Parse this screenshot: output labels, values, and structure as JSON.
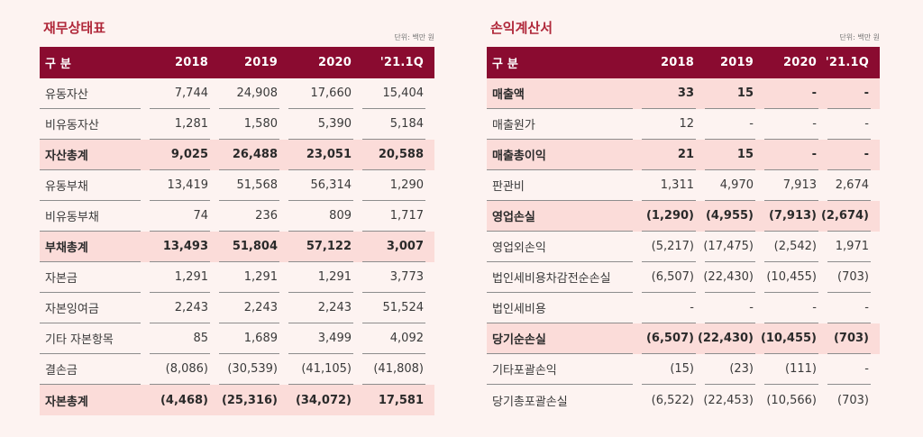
{
  "balance_sheet": {
    "title": "재무상태표",
    "unit": "단위: 백만 원",
    "columns": [
      "구 분",
      "2018",
      "2019",
      "2020",
      "'21.1Q"
    ],
    "rows": [
      {
        "label": "유동자산",
        "values": [
          "7,744",
          "24,908",
          "17,660",
          "15,404"
        ],
        "highlight": false
      },
      {
        "label": "비유동자산",
        "values": [
          "1,281",
          "1,580",
          "5,390",
          "5,184"
        ],
        "highlight": false
      },
      {
        "label": "자산총계",
        "values": [
          "9,025",
          "26,488",
          "23,051",
          "20,588"
        ],
        "highlight": true
      },
      {
        "label": "유동부채",
        "values": [
          "13,419",
          "51,568",
          "56,314",
          "1,290"
        ],
        "highlight": false
      },
      {
        "label": "비유동부채",
        "values": [
          "74",
          "236",
          "809",
          "1,717"
        ],
        "highlight": false
      },
      {
        "label": "부채총계",
        "values": [
          "13,493",
          "51,804",
          "57,122",
          "3,007"
        ],
        "highlight": true
      },
      {
        "label": "자본금",
        "values": [
          "1,291",
          "1,291",
          "1,291",
          "3,773"
        ],
        "highlight": false
      },
      {
        "label": "자본잉여금",
        "values": [
          "2,243",
          "2,243",
          "2,243",
          "51,524"
        ],
        "highlight": false
      },
      {
        "label": "기타 자본항목",
        "values": [
          "85",
          "1,689",
          "3,499",
          "4,092"
        ],
        "highlight": false
      },
      {
        "label": "결손금",
        "values": [
          "(8,086)",
          "(30,539)",
          "(41,105)",
          "(41,808)"
        ],
        "highlight": false
      },
      {
        "label": "자본총계",
        "values": [
          "(4,468)",
          "(25,316)",
          "(34,072)",
          "17,581"
        ],
        "highlight": true
      }
    ]
  },
  "income_statement": {
    "title": "손익계산서",
    "unit": "단위: 백만 원",
    "columns": [
      "구 분",
      "2018",
      "2019",
      "2020",
      "'21.1Q"
    ],
    "rows": [
      {
        "label": "매출액",
        "values": [
          "33",
          "15",
          "-",
          "-"
        ],
        "highlight": true
      },
      {
        "label": "매출원가",
        "values": [
          "12",
          "-",
          "-",
          "-"
        ],
        "highlight": false
      },
      {
        "label": "매출총이익",
        "values": [
          "21",
          "15",
          "-",
          "-"
        ],
        "highlight": true
      },
      {
        "label": "판관비",
        "values": [
          "1,311",
          "4,970",
          "7,913",
          "2,674"
        ],
        "highlight": false
      },
      {
        "label": "영업손실",
        "values": [
          "(1,290)",
          "(4,955)",
          "(7,913)",
          "(2,674)"
        ],
        "highlight": true
      },
      {
        "label": "영업외손익",
        "values": [
          "(5,217)",
          "(17,475)",
          "(2,542)",
          "1,971"
        ],
        "highlight": false
      },
      {
        "label": "법인세비용차감전순손실",
        "values": [
          "(6,507)",
          "(22,430)",
          "(10,455)",
          "(703)"
        ],
        "highlight": false
      },
      {
        "label": "법인세비용",
        "values": [
          "-",
          "-",
          "-",
          "-"
        ],
        "highlight": false
      },
      {
        "label": "당기순손실",
        "values": [
          "(6,507)",
          "(22,430)",
          "(10,455)",
          "(703)"
        ],
        "highlight": true
      },
      {
        "label": "기타포괄손익",
        "values": [
          "(15)",
          "(23)",
          "(111)",
          "-"
        ],
        "highlight": false
      },
      {
        "label": "당기총포괄손실",
        "values": [
          "(6,522)",
          "(22,453)",
          "(10,566)",
          "(703)"
        ],
        "highlight": false
      }
    ]
  }
}
